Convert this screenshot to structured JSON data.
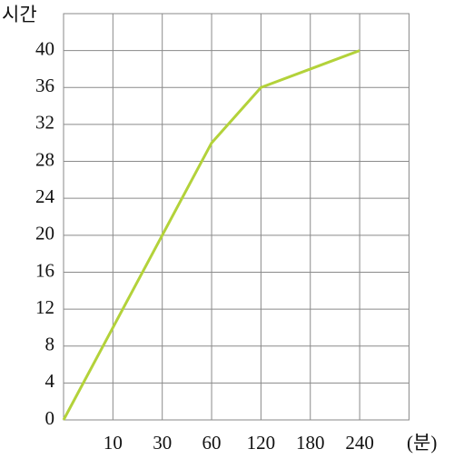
{
  "chart_data": {
    "type": "line",
    "y_label": "시간",
    "x_label": "(분)",
    "categories": [
      null,
      "10",
      "30",
      "60",
      "120",
      "180",
      "240"
    ],
    "values": [
      0,
      10,
      20,
      30,
      36,
      38,
      40
    ],
    "color": "#b3d23a",
    "ylim": [
      0,
      44
    ],
    "yticks": [
      0,
      4,
      8,
      12,
      16,
      20,
      24,
      28,
      32,
      36,
      40
    ],
    "grid": true
  }
}
